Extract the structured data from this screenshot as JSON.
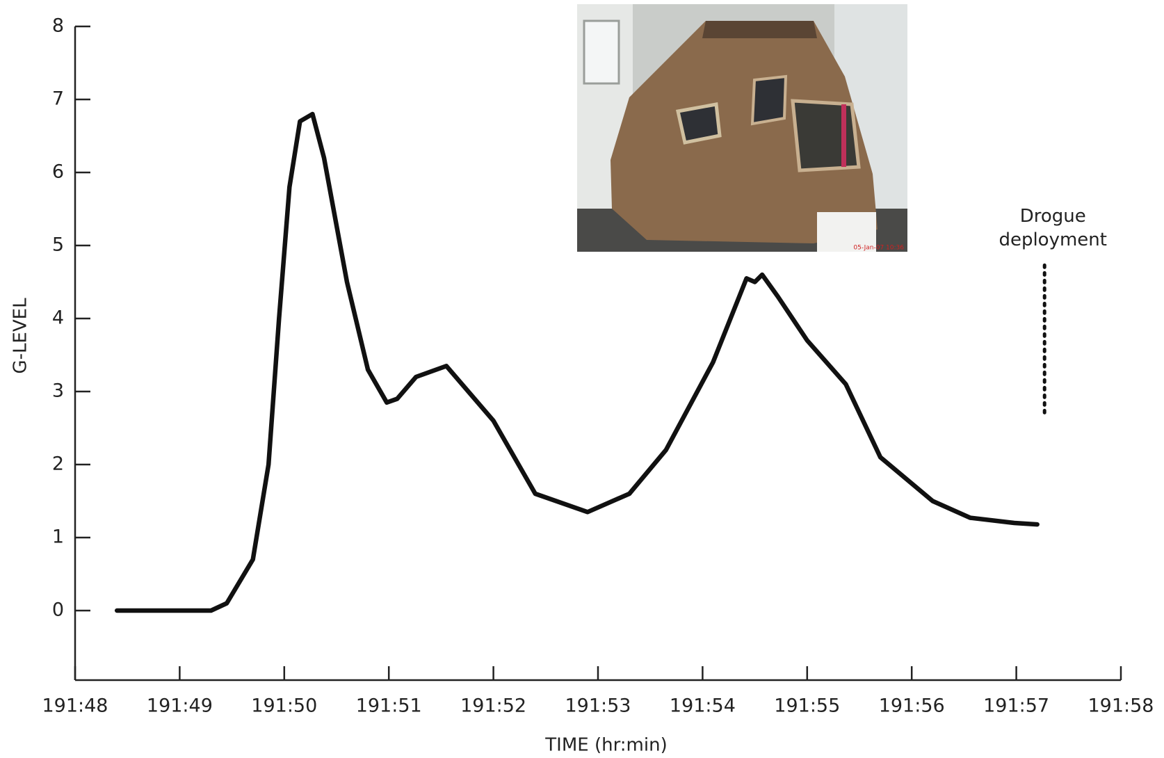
{
  "chart_data": {
    "type": "line",
    "x_label": "TIME (hr:min)",
    "y_label": "G-LEVEL",
    "xlim": [
      11508,
      11518
    ],
    "xticks": [
      {
        "value": 11508,
        "label": "191:48"
      },
      {
        "value": 11509,
        "label": "191:49"
      },
      {
        "value": 11510,
        "label": "191:50"
      },
      {
        "value": 11511,
        "label": "191:51"
      },
      {
        "value": 11512,
        "label": "191:52"
      },
      {
        "value": 11513,
        "label": "191:53"
      },
      {
        "value": 11514,
        "label": "191:54"
      },
      {
        "value": 11515,
        "label": "191:55"
      },
      {
        "value": 11516,
        "label": "191:56"
      },
      {
        "value": 11517,
        "label": "191:57"
      },
      {
        "value": 11518,
        "label": "191:58"
      }
    ],
    "ylim": [
      -1,
      8
    ],
    "yticks": [
      0,
      1,
      2,
      3,
      4,
      5,
      6,
      7,
      8
    ],
    "x": [
      11508.4,
      11509.3,
      11509.45,
      11509.7,
      11509.85,
      11509.95,
      11510.05,
      11510.15,
      11510.27,
      11510.38,
      11510.6,
      11510.8,
      11510.98,
      11511.08,
      11511.26,
      11511.55,
      11512.0,
      11512.4,
      11512.9,
      11513.3,
      11513.65,
      11514.1,
      11514.42,
      11514.5,
      11514.57,
      11514.72,
      11515.0,
      11515.37,
      11515.7,
      11516.2,
      11516.56,
      11516.98,
      11517.2
    ],
    "series": [
      {
        "color": "#111111",
        "values": [
          0,
          0,
          0.1,
          0.7,
          2.0,
          4.0,
          5.8,
          6.7,
          6.8,
          6.2,
          4.5,
          3.3,
          2.85,
          2.9,
          3.2,
          3.35,
          2.6,
          1.6,
          1.35,
          1.6,
          2.2,
          3.4,
          4.55,
          4.5,
          4.6,
          4.3,
          3.7,
          3.1,
          2.1,
          1.5,
          1.27,
          1.2,
          1.18
        ]
      }
    ],
    "annotation": {
      "lines": [
        "Drogue",
        "deployment"
      ],
      "x": 11517.27,
      "y_range": [
        4.73,
        2.69
      ]
    },
    "photo": {
      "timestamp": "05-Jan-07 10:36"
    }
  }
}
